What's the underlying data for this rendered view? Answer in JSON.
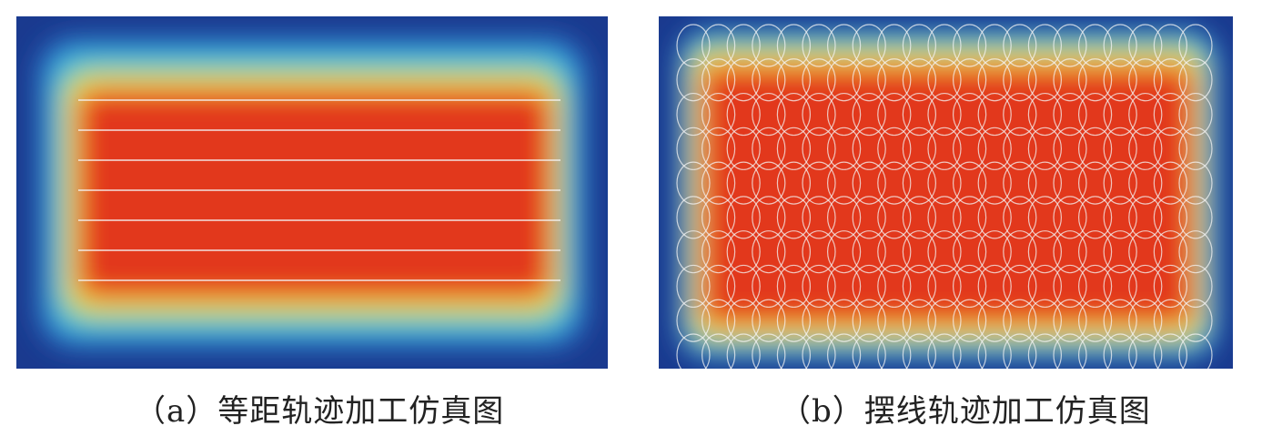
{
  "panels": [
    {
      "id": "a",
      "caption": "（a）等距轨迹加工仿真图",
      "path_type": "equidistant-lines",
      "line_count": 7
    },
    {
      "id": "b",
      "caption": "（b）摆线轨迹加工仿真图",
      "path_type": "trochoid-loops",
      "loop_rows": 10,
      "loop_cols": 21
    }
  ],
  "colors": {
    "outer": "#1a3a8f",
    "cyan": "#3bb8e0",
    "green": "#8fd87a",
    "yellow": "#f2e04a",
    "orange": "#f08a2c",
    "core": "#e2381f",
    "path": "#f4f4f4"
  }
}
